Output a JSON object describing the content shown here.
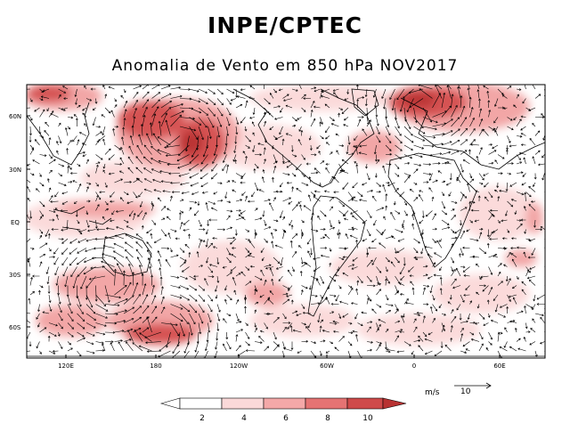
{
  "header": {
    "title": "INPE/CPTEC",
    "subtitle": "Anomalia de Vento em 850 hPa NOV2017"
  },
  "axes": {
    "lat_ticks": [
      "60N",
      "30N",
      "EQ",
      "30S",
      "60S"
    ],
    "lon_ticks": [
      "120E",
      "180",
      "120W",
      "60W",
      "0",
      "60E"
    ]
  },
  "legend": {
    "reference_unit": "m/s",
    "reference_value": "10",
    "colorbar_labels": [
      "2",
      "4",
      "6",
      "8",
      "10"
    ],
    "colorbar_colors": [
      "#ffffff",
      "#fbd9d9",
      "#f4a8a8",
      "#e57373",
      "#cf4a4a",
      "#b83232",
      "#a52626"
    ]
  },
  "colors": {
    "shade_light": "#fbdada",
    "shade_medium": "#f2a6a6",
    "shade_strong": "#d65353",
    "shade_max": "#bb3535"
  }
}
